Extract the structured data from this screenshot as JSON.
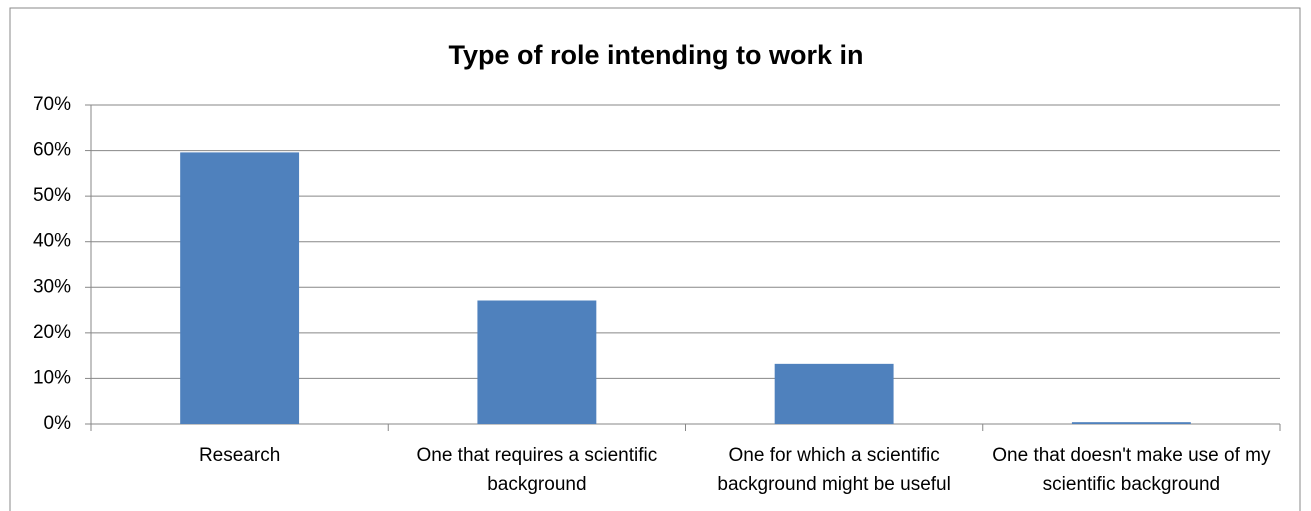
{
  "chart_data": {
    "type": "bar",
    "title": "Type of role intending to work in",
    "categories": [
      "Research",
      "One that requires a scientific background",
      "One for which a scientific background might be useful",
      "One that doesn't make use of my scientific background"
    ],
    "values": [
      59.6,
      27.1,
      13.2,
      0.4
    ],
    "color": "#4f81bd",
    "ylim": [
      0,
      70
    ],
    "yticks": [
      {
        "value": 0,
        "label": "0%"
      },
      {
        "value": 10,
        "label": "10%"
      },
      {
        "value": 20,
        "label": "20%"
      },
      {
        "value": 30,
        "label": "30%"
      },
      {
        "value": 40,
        "label": "40%"
      },
      {
        "value": 50,
        "label": "50%"
      },
      {
        "value": 60,
        "label": "60%"
      },
      {
        "value": 70,
        "label": "70%"
      }
    ],
    "grid": true
  }
}
